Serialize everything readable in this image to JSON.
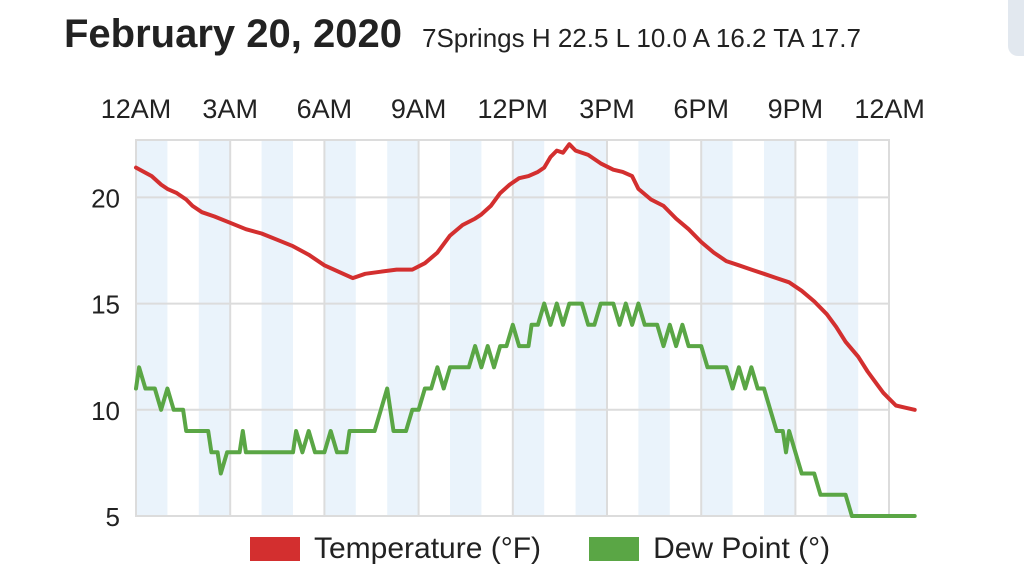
{
  "header": {
    "date": "February 20, 2020",
    "summary": "7Springs H 22.5 L 10.0 A 16.2 TA 17.7"
  },
  "colors": {
    "temperature": "#d32f2f",
    "dew_point": "#5aa645",
    "band": "#eaf3fb",
    "grid": "#dcdcdc"
  },
  "chart_data": {
    "type": "line",
    "x_unit": "hours",
    "x_tick_labels": [
      "12AM",
      "3AM",
      "6AM",
      "9AM",
      "12PM",
      "3PM",
      "6PM",
      "9PM",
      "12AM"
    ],
    "x_tick_hours": [
      0,
      3,
      6,
      9,
      12,
      15,
      18,
      21,
      24
    ],
    "xlim": [
      0,
      24
    ],
    "y_ticks": [
      5,
      10,
      15,
      20
    ],
    "ylim": [
      5,
      22.7
    ],
    "grid": true,
    "legend_position": "bottom",
    "series": [
      {
        "name": "Temperature (°F)",
        "color_key": "temperature",
        "points": [
          [
            0,
            21.4
          ],
          [
            0.5,
            21
          ],
          [
            0.8,
            20.6
          ],
          [
            1,
            20.4
          ],
          [
            1.3,
            20.2
          ],
          [
            1.6,
            19.9
          ],
          [
            1.8,
            19.6
          ],
          [
            2.1,
            19.3
          ],
          [
            2.5,
            19.1
          ],
          [
            3,
            18.8
          ],
          [
            3.5,
            18.5
          ],
          [
            4,
            18.3
          ],
          [
            4.5,
            18
          ],
          [
            5,
            17.7
          ],
          [
            5.5,
            17.3
          ],
          [
            6,
            16.8
          ],
          [
            6.6,
            16.4
          ],
          [
            6.9,
            16.2
          ],
          [
            7.3,
            16.4
          ],
          [
            7.8,
            16.5
          ],
          [
            8.3,
            16.6
          ],
          [
            8.8,
            16.6
          ],
          [
            9.2,
            16.9
          ],
          [
            9.6,
            17.4
          ],
          [
            10,
            18.2
          ],
          [
            10.4,
            18.7
          ],
          [
            10.8,
            19
          ],
          [
            11,
            19.2
          ],
          [
            11.3,
            19.6
          ],
          [
            11.6,
            20.2
          ],
          [
            11.9,
            20.6
          ],
          [
            12.2,
            20.9
          ],
          [
            12.5,
            21
          ],
          [
            12.8,
            21.2
          ],
          [
            13,
            21.4
          ],
          [
            13.2,
            21.9
          ],
          [
            13.4,
            22.2
          ],
          [
            13.6,
            22.1
          ],
          [
            13.8,
            22.5
          ],
          [
            14,
            22.2
          ],
          [
            14.4,
            22
          ],
          [
            14.8,
            21.6
          ],
          [
            15.2,
            21.3
          ],
          [
            15.5,
            21.2
          ],
          [
            15.8,
            21
          ],
          [
            16,
            20.4
          ],
          [
            16.4,
            19.9
          ],
          [
            16.8,
            19.6
          ],
          [
            17.2,
            19
          ],
          [
            17.6,
            18.5
          ],
          [
            18,
            17.9
          ],
          [
            18.4,
            17.4
          ],
          [
            18.8,
            17
          ],
          [
            19.2,
            16.8
          ],
          [
            19.6,
            16.6
          ],
          [
            20,
            16.4
          ],
          [
            20.4,
            16.2
          ],
          [
            20.8,
            16
          ],
          [
            21.2,
            15.6
          ],
          [
            21.6,
            15.1
          ],
          [
            22,
            14.5
          ],
          [
            22.3,
            13.9
          ],
          [
            22.6,
            13.2
          ],
          [
            23,
            12.5
          ],
          [
            23.3,
            11.8
          ],
          [
            23.6,
            11.2
          ],
          [
            23.8,
            10.8
          ],
          [
            24,
            10.5
          ],
          [
            24.2,
            10.2
          ],
          [
            24.5,
            10.1
          ],
          [
            24.8,
            10
          ]
        ]
      },
      {
        "name": "Dew Point (°)",
        "color_key": "dew_point",
        "points": [
          [
            0,
            11
          ],
          [
            0.1,
            12
          ],
          [
            0.3,
            11
          ],
          [
            0.6,
            11
          ],
          [
            0.8,
            10
          ],
          [
            1,
            11
          ],
          [
            1.2,
            10
          ],
          [
            1.5,
            10
          ],
          [
            1.6,
            9
          ],
          [
            2,
            9
          ],
          [
            2.3,
            9
          ],
          [
            2.4,
            8
          ],
          [
            2.6,
            8
          ],
          [
            2.7,
            7
          ],
          [
            2.9,
            8
          ],
          [
            3,
            8
          ],
          [
            3.3,
            8
          ],
          [
            3.4,
            9
          ],
          [
            3.5,
            8
          ],
          [
            4,
            8
          ],
          [
            5,
            8
          ],
          [
            5.1,
            9
          ],
          [
            5.3,
            8
          ],
          [
            5.5,
            9
          ],
          [
            5.7,
            8
          ],
          [
            6,
            8
          ],
          [
            6.2,
            9
          ],
          [
            6.4,
            8
          ],
          [
            6.7,
            8
          ],
          [
            6.8,
            9
          ],
          [
            7,
            9
          ],
          [
            7.5,
            9
          ],
          [
            7.6,
            9
          ],
          [
            7.8,
            10
          ],
          [
            8,
            11
          ],
          [
            8.2,
            9
          ],
          [
            8.6,
            9
          ],
          [
            8.8,
            10
          ],
          [
            9,
            10
          ],
          [
            9.2,
            11
          ],
          [
            9.4,
            11
          ],
          [
            9.6,
            12
          ],
          [
            9.8,
            11
          ],
          [
            10,
            12
          ],
          [
            10.4,
            12
          ],
          [
            10.6,
            12
          ],
          [
            10.8,
            13
          ],
          [
            11,
            12
          ],
          [
            11.2,
            13
          ],
          [
            11.4,
            12
          ],
          [
            11.6,
            13
          ],
          [
            11.8,
            13
          ],
          [
            12,
            14
          ],
          [
            12.2,
            13
          ],
          [
            12.5,
            13
          ],
          [
            12.6,
            14
          ],
          [
            12.8,
            14
          ],
          [
            13,
            15
          ],
          [
            13.2,
            14
          ],
          [
            13.4,
            15
          ],
          [
            13.6,
            14
          ],
          [
            13.8,
            15
          ],
          [
            14.2,
            15
          ],
          [
            14.4,
            14
          ],
          [
            14.6,
            14
          ],
          [
            14.8,
            15
          ],
          [
            15.2,
            15
          ],
          [
            15.4,
            14
          ],
          [
            15.6,
            15
          ],
          [
            15.8,
            14
          ],
          [
            16,
            15
          ],
          [
            16.2,
            14
          ],
          [
            16.6,
            14
          ],
          [
            16.8,
            13
          ],
          [
            17,
            14
          ],
          [
            17.2,
            13
          ],
          [
            17.4,
            14
          ],
          [
            17.6,
            13
          ],
          [
            18,
            13
          ],
          [
            18.2,
            12
          ],
          [
            18.8,
            12
          ],
          [
            19,
            11
          ],
          [
            19.2,
            12
          ],
          [
            19.4,
            11
          ],
          [
            19.6,
            12
          ],
          [
            19.8,
            11
          ],
          [
            20,
            11
          ],
          [
            20.2,
            10
          ],
          [
            20.4,
            9
          ],
          [
            20.6,
            9
          ],
          [
            20.7,
            8
          ],
          [
            20.8,
            9
          ],
          [
            21,
            8
          ],
          [
            21.2,
            7
          ],
          [
            21.4,
            7
          ],
          [
            21.6,
            7
          ],
          [
            21.8,
            6
          ],
          [
            22,
            6
          ],
          [
            22.2,
            6
          ],
          [
            22.6,
            6
          ],
          [
            22.8,
            5
          ],
          [
            23,
            5
          ],
          [
            23.5,
            5
          ],
          [
            24,
            5
          ],
          [
            24.8,
            5
          ]
        ]
      }
    ]
  }
}
